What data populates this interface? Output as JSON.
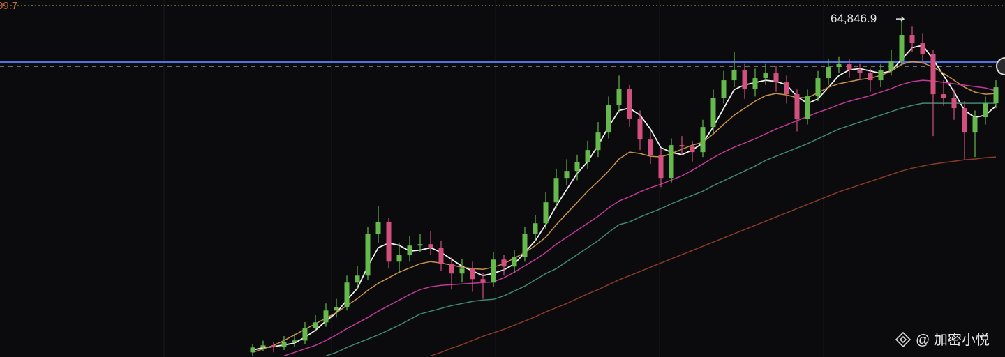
{
  "chart_data": {
    "type": "candlestick",
    "ylim": [
      50400,
      65750
    ],
    "top_label": "09.7",
    "high_label": "64,846.9",
    "high_index": 62,
    "watermark": "@ 加密小悦",
    "up_color": "#66b94c",
    "down_color": "#d1507c",
    "price_lines": [
      {
        "value": 65510,
        "color": "#9ab85a",
        "style": "dotted"
      },
      {
        "value": 63080,
        "color": "#4d74e0",
        "style": "solid"
      },
      {
        "value": 62900,
        "color": "#cfcfcf",
        "style": "dashed"
      }
    ],
    "open": [
      50600,
      50810,
      50900,
      50840,
      51050,
      51110,
      51650,
      51890,
      52400,
      52550,
      53600,
      53900,
      55700,
      56210,
      54500,
      54800,
      55190,
      55250,
      55100,
      54410,
      53990,
      54200,
      53750,
      53600,
      54590,
      54290,
      54710,
      55700,
      56150,
      57050,
      58100,
      58400,
      58790,
      59300,
      60050,
      61250,
      61910,
      60650,
      59750,
      59090,
      58100,
      59510,
      59450,
      59210,
      60290,
      61550,
      62300,
      62750,
      61910,
      62390,
      62600,
      62210,
      61700,
      60650,
      61610,
      62390,
      62870,
      62990,
      62750,
      62630,
      62300,
      62750,
      63110,
      64250,
      63890,
      63410,
      61700,
      61550,
      61100,
      60050,
      60710,
      61310
    ],
    "high": [
      50950,
      51100,
      51050,
      51300,
      51400,
      51900,
      52200,
      52700,
      52900,
      53900,
      54300,
      56000,
      56900,
      56400,
      55300,
      55600,
      55700,
      55800,
      55400,
      54700,
      54600,
      54500,
      54000,
      54900,
      54800,
      55000,
      56000,
      56500,
      57500,
      58500,
      58900,
      59100,
      59700,
      60500,
      61600,
      62500,
      62100,
      61000,
      60100,
      59400,
      59800,
      59900,
      59700,
      60600,
      61900,
      62700,
      63500,
      63000,
      62800,
      63000,
      62900,
      62500,
      61900,
      61900,
      62700,
      63200,
      63300,
      63200,
      63000,
      62800,
      63000,
      63600,
      64846.9,
      64600,
      64300,
      63600,
      62300,
      61900,
      61400,
      61000,
      61600,
      62300
    ],
    "low": [
      50450,
      50650,
      50600,
      50700,
      50850,
      50950,
      51500,
      51700,
      52100,
      52400,
      53300,
      53700,
      55300,
      54200,
      54000,
      54500,
      54900,
      54800,
      54100,
      53300,
      53600,
      53200,
      52900,
      53400,
      53900,
      54000,
      54500,
      55400,
      55900,
      56800,
      57800,
      58000,
      58500,
      59000,
      59800,
      60900,
      60300,
      59300,
      58700,
      57700,
      57900,
      59100,
      58800,
      59000,
      60000,
      61300,
      62000,
      61500,
      61600,
      62100,
      61800,
      61300,
      60100,
      60400,
      61400,
      62100,
      62600,
      62400,
      62300,
      61800,
      62000,
      62500,
      62900,
      63500,
      63000,
      59900,
      61200,
      60600,
      58900,
      59000,
      60400,
      61100
    ],
    "close": [
      50810,
      50900,
      50840,
      51050,
      51110,
      51650,
      51890,
      52400,
      52550,
      53600,
      53900,
      55700,
      56210,
      54500,
      54800,
      55190,
      55250,
      55100,
      54410,
      53990,
      54200,
      53750,
      53600,
      54590,
      54290,
      54710,
      55700,
      56150,
      57050,
      58100,
      58400,
      58790,
      59300,
      60050,
      61250,
      61910,
      60650,
      59750,
      59090,
      58100,
      59510,
      59450,
      59210,
      60290,
      61550,
      62300,
      62750,
      61910,
      62390,
      62600,
      62210,
      61700,
      60650,
      61610,
      62390,
      62870,
      62990,
      62750,
      62630,
      62300,
      62750,
      63110,
      64250,
      63890,
      63410,
      61700,
      61550,
      61100,
      60050,
      60710,
      61310,
      62000
    ],
    "series": [
      {
        "color": "#f2f2f2",
        "values": [
          50700,
          50800,
          50850,
          50920,
          51000,
          51250,
          51550,
          51950,
          52300,
          52850,
          53350,
          54300,
          55100,
          55300,
          55200,
          54950,
          55000,
          55100,
          54900,
          54600,
          54300,
          54100,
          53900,
          54000,
          54150,
          54400,
          54900,
          55400,
          56100,
          56900,
          57600,
          58300,
          58800,
          59500,
          60300,
          61000,
          61100,
          60800,
          60200,
          59400,
          59200,
          59100,
          59300,
          59600,
          60300,
          61100,
          61900,
          62100,
          62200,
          62300,
          62250,
          62100,
          61600,
          61300,
          61500,
          62000,
          62500,
          62750,
          62800,
          62700,
          62600,
          62700,
          63200,
          63700,
          63800,
          63200,
          62500,
          61800,
          61000,
          60700,
          60800,
          61200
        ]
      },
      {
        "color": "#c9924a",
        "values": [
          50600,
          50750,
          50900,
          51110,
          51350,
          51590,
          51830,
          52070,
          52310,
          52610,
          52910,
          53270,
          53570,
          53810,
          54050,
          54230,
          54410,
          54500,
          54440,
          54350,
          54260,
          54200,
          54170,
          54260,
          54410,
          54650,
          54890,
          55190,
          55550,
          56090,
          56570,
          57050,
          57530,
          57950,
          58400,
          58910,
          59210,
          59150,
          59030,
          59000,
          59150,
          59330,
          59510,
          59630,
          59990,
          60410,
          60800,
          61100,
          61400,
          61640,
          61730,
          61670,
          61550,
          61550,
          61760,
          62000,
          62150,
          62240,
          62330,
          62390,
          62510,
          62690,
          62990,
          63110,
          63050,
          62870,
          62600,
          62300,
          62000,
          61790,
          61700,
          61730
        ]
      },
      {
        "color": "#c0399a",
        "values": [
          null,
          null,
          null,
          50450,
          50600,
          50750,
          50900,
          51110,
          51350,
          51620,
          51860,
          52100,
          52370,
          52610,
          52850,
          53090,
          53300,
          53420,
          53480,
          53510,
          53540,
          53570,
          53600,
          53630,
          53810,
          54050,
          54320,
          54590,
          54890,
          55250,
          55550,
          55850,
          56150,
          56450,
          56810,
          57110,
          57290,
          57500,
          57680,
          57830,
          58010,
          58190,
          58430,
          58700,
          58970,
          59210,
          59420,
          59600,
          59780,
          59990,
          60200,
          60380,
          60560,
          60740,
          60920,
          61070,
          61250,
          61400,
          61520,
          61640,
          61790,
          61940,
          62120,
          62240,
          62300,
          62270,
          62210,
          62150,
          62090,
          62030,
          61970,
          61850
        ]
      },
      {
        "color": "#3f8a6c",
        "values": [
          null,
          null,
          null,
          null,
          null,
          null,
          null,
          50450,
          50600,
          50810,
          50990,
          51170,
          51350,
          51560,
          51770,
          52010,
          52250,
          52370,
          52490,
          52610,
          52700,
          52790,
          52850,
          52880,
          53030,
          53240,
          53450,
          53720,
          53990,
          54200,
          54500,
          54800,
          55100,
          55400,
          55760,
          56090,
          56210,
          56420,
          56600,
          56780,
          56990,
          57170,
          57350,
          57530,
          57770,
          57980,
          58190,
          58400,
          58610,
          58850,
          59030,
          59210,
          59390,
          59570,
          59780,
          59990,
          60200,
          60350,
          60500,
          60650,
          60800,
          60950,
          61100,
          61220,
          61310,
          61310,
          61310,
          61310,
          61310,
          61310,
          61310,
          61310
        ]
      },
      {
        "color": "#8a3a28",
        "values": [
          null,
          null,
          null,
          null,
          null,
          null,
          null,
          null,
          null,
          null,
          null,
          null,
          null,
          null,
          null,
          null,
          null,
          50450,
          50600,
          50780,
          50930,
          51110,
          51290,
          51440,
          51590,
          51770,
          51950,
          52130,
          52340,
          52520,
          52700,
          52910,
          53120,
          53300,
          53510,
          53720,
          53900,
          54080,
          54260,
          54440,
          54620,
          54800,
          54980,
          55160,
          55340,
          55520,
          55700,
          55880,
          56060,
          56240,
          56420,
          56600,
          56780,
          56960,
          57140,
          57320,
          57500,
          57650,
          57800,
          57950,
          58100,
          58250,
          58400,
          58520,
          58610,
          58700,
          58760,
          58820,
          58880,
          58910,
          58970,
          59000
        ]
      }
    ]
  }
}
